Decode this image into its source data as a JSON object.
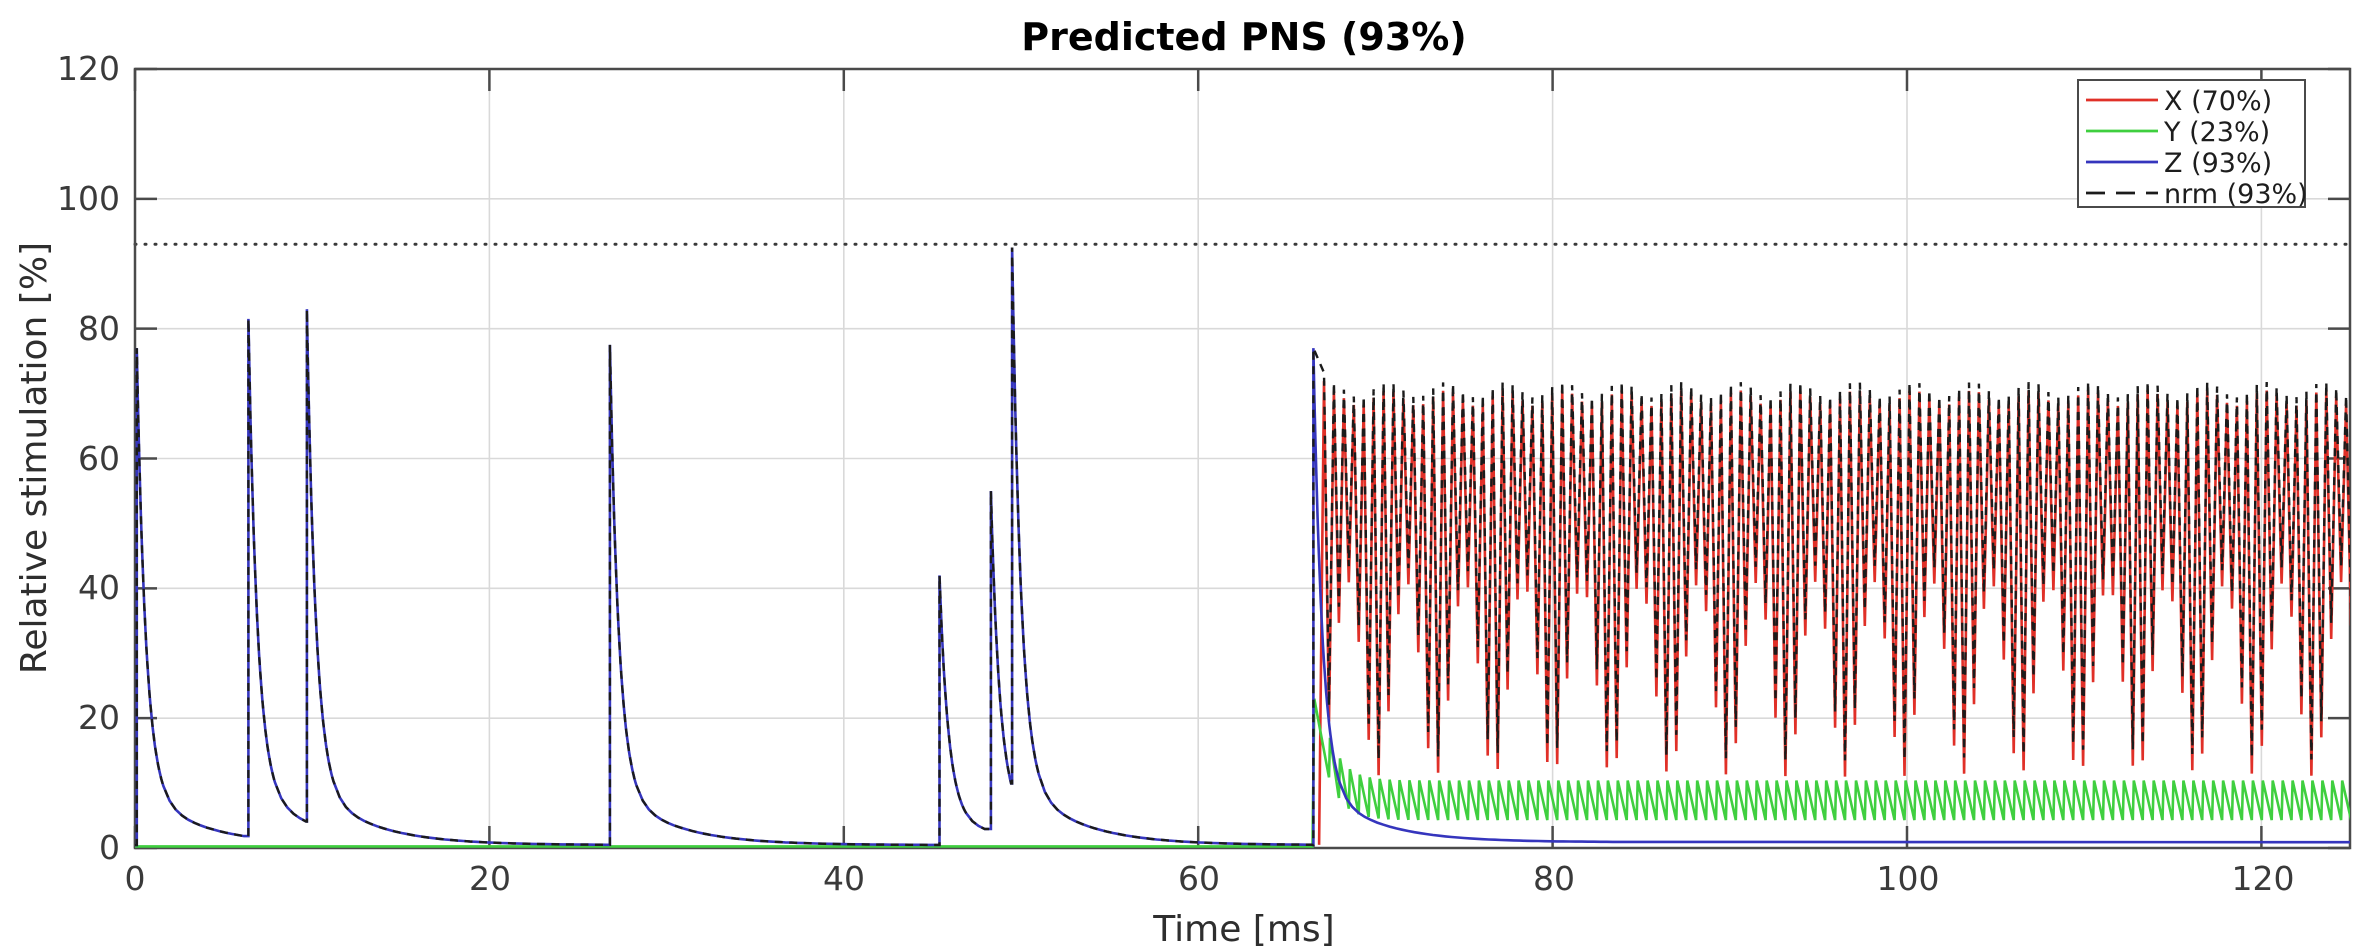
{
  "figure": {
    "title": "Predicted PNS (93%)"
  },
  "colors": {
    "background": "#ffffff",
    "plot_background": "#ffffff",
    "grid": "#d9d9d9",
    "axis": "#4a4a4a",
    "threshold": "#3a3a3a",
    "legend_border": "#4a4a4a",
    "legend_background": "#ffffff"
  },
  "chart_data": {
    "type": "line",
    "title": "Predicted PNS (93%)",
    "xlabel": "Time [ms]",
    "ylabel": "Relative stimulation [%]",
    "xlim": [
      0,
      125
    ],
    "ylim": [
      0,
      120
    ],
    "xticks": [
      0,
      20,
      40,
      60,
      80,
      100,
      120
    ],
    "yticks": [
      0,
      20,
      40,
      60,
      80,
      100,
      120
    ],
    "grid": true,
    "legend_position": "top-right",
    "threshold": {
      "value_pct": 93,
      "style": "dotted"
    },
    "series": [
      {
        "name": "X (70%)",
        "color": "#e03028",
        "style": "solid",
        "max_pct": 70
      },
      {
        "name": "Y (23%)",
        "color": "#3fcf3f",
        "style": "solid",
        "max_pct": 23
      },
      {
        "name": "Z (93%)",
        "color": "#3535bd",
        "style": "solid",
        "max_pct": 93
      },
      {
        "name": "nrm (93%)",
        "color": "#1b1b1b",
        "style": "dashed",
        "max_pct": 93
      }
    ],
    "z_spikes": [
      {
        "t_ms": 0.1,
        "peak_pct": 77.0
      },
      {
        "t_ms": 6.4,
        "peak_pct": 81.5
      },
      {
        "t_ms": 9.7,
        "peak_pct": 83.0
      },
      {
        "t_ms": 26.8,
        "peak_pct": 77.5
      },
      {
        "t_ms": 45.4,
        "peak_pct": 42.0
      },
      {
        "t_ms": 48.3,
        "peak_pct": 55.0
      },
      {
        "t_ms": 49.5,
        "peak_pct": 92.5
      }
    ],
    "burst": {
      "t_start_ms": 66.5,
      "t_end_ms": 125,
      "initial_peak_pct": 77,
      "period_ms": 0.56,
      "first_cycle_ms": 67.1,
      "half_cycle_frac": 0.5,
      "x_upper_mean_pct": 69.3,
      "x_upper_amp_pct": 1.2,
      "x_lower_mean_pct": 26,
      "x_lower_amp_pct": 15,
      "beat_period_ms": 3.3,
      "nrm_peak_offset_pct": 1.3,
      "nrm_min_offset_pct": 2.5,
      "y_transient_peak_pct": 23,
      "y_base_pct": 4.3,
      "y_tip_rise_pct": 6.1,
      "y_transient_amp_pct": 18.5,
      "y_transient_tau_ms": 0.85,
      "z_floor_pct": 0.9
    },
    "decay": {
      "fast_tau_ms": 0.5,
      "slow_tau_ms": 3.2,
      "fast_fraction": 0.88,
      "floor_pct": 0.45,
      "y_baseline_pct": 0.25
    }
  }
}
